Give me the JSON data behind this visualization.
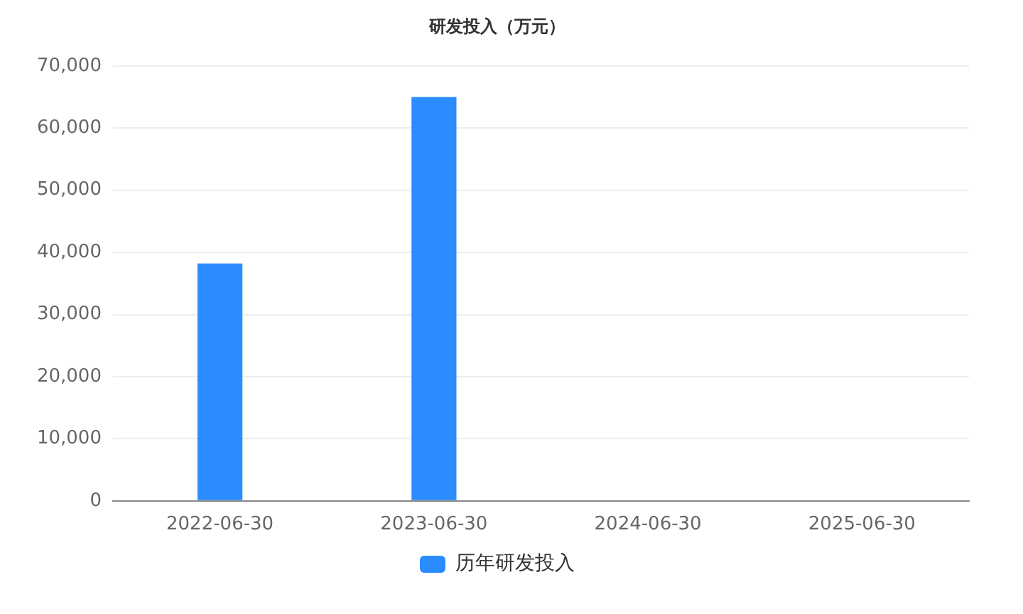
{
  "chart_data": {
    "type": "bar",
    "title": "研发投入（万元）",
    "categories": [
      "2022-06-30",
      "2023-06-30",
      "2024-06-30",
      "2025-06-30"
    ],
    "series": [
      {
        "name": "历年研发投入",
        "color": "#2b8cff",
        "values": [
          38200,
          65000,
          null,
          null
        ]
      }
    ],
    "ylim": [
      0,
      70000
    ],
    "yticks": [
      0,
      {
        "value": 10000,
        "label": "10,000"
      },
      {
        "value": 20000,
        "label": "20,000"
      },
      {
        "value": 30000,
        "label": "30,000"
      },
      {
        "value": 40000,
        "label": "40,000"
      },
      {
        "value": 50000,
        "label": "50,000"
      },
      {
        "value": 60000,
        "label": "60,000"
      },
      {
        "value": 70000,
        "label": "70,000"
      }
    ],
    "grid": "y",
    "legend": "bottom"
  }
}
